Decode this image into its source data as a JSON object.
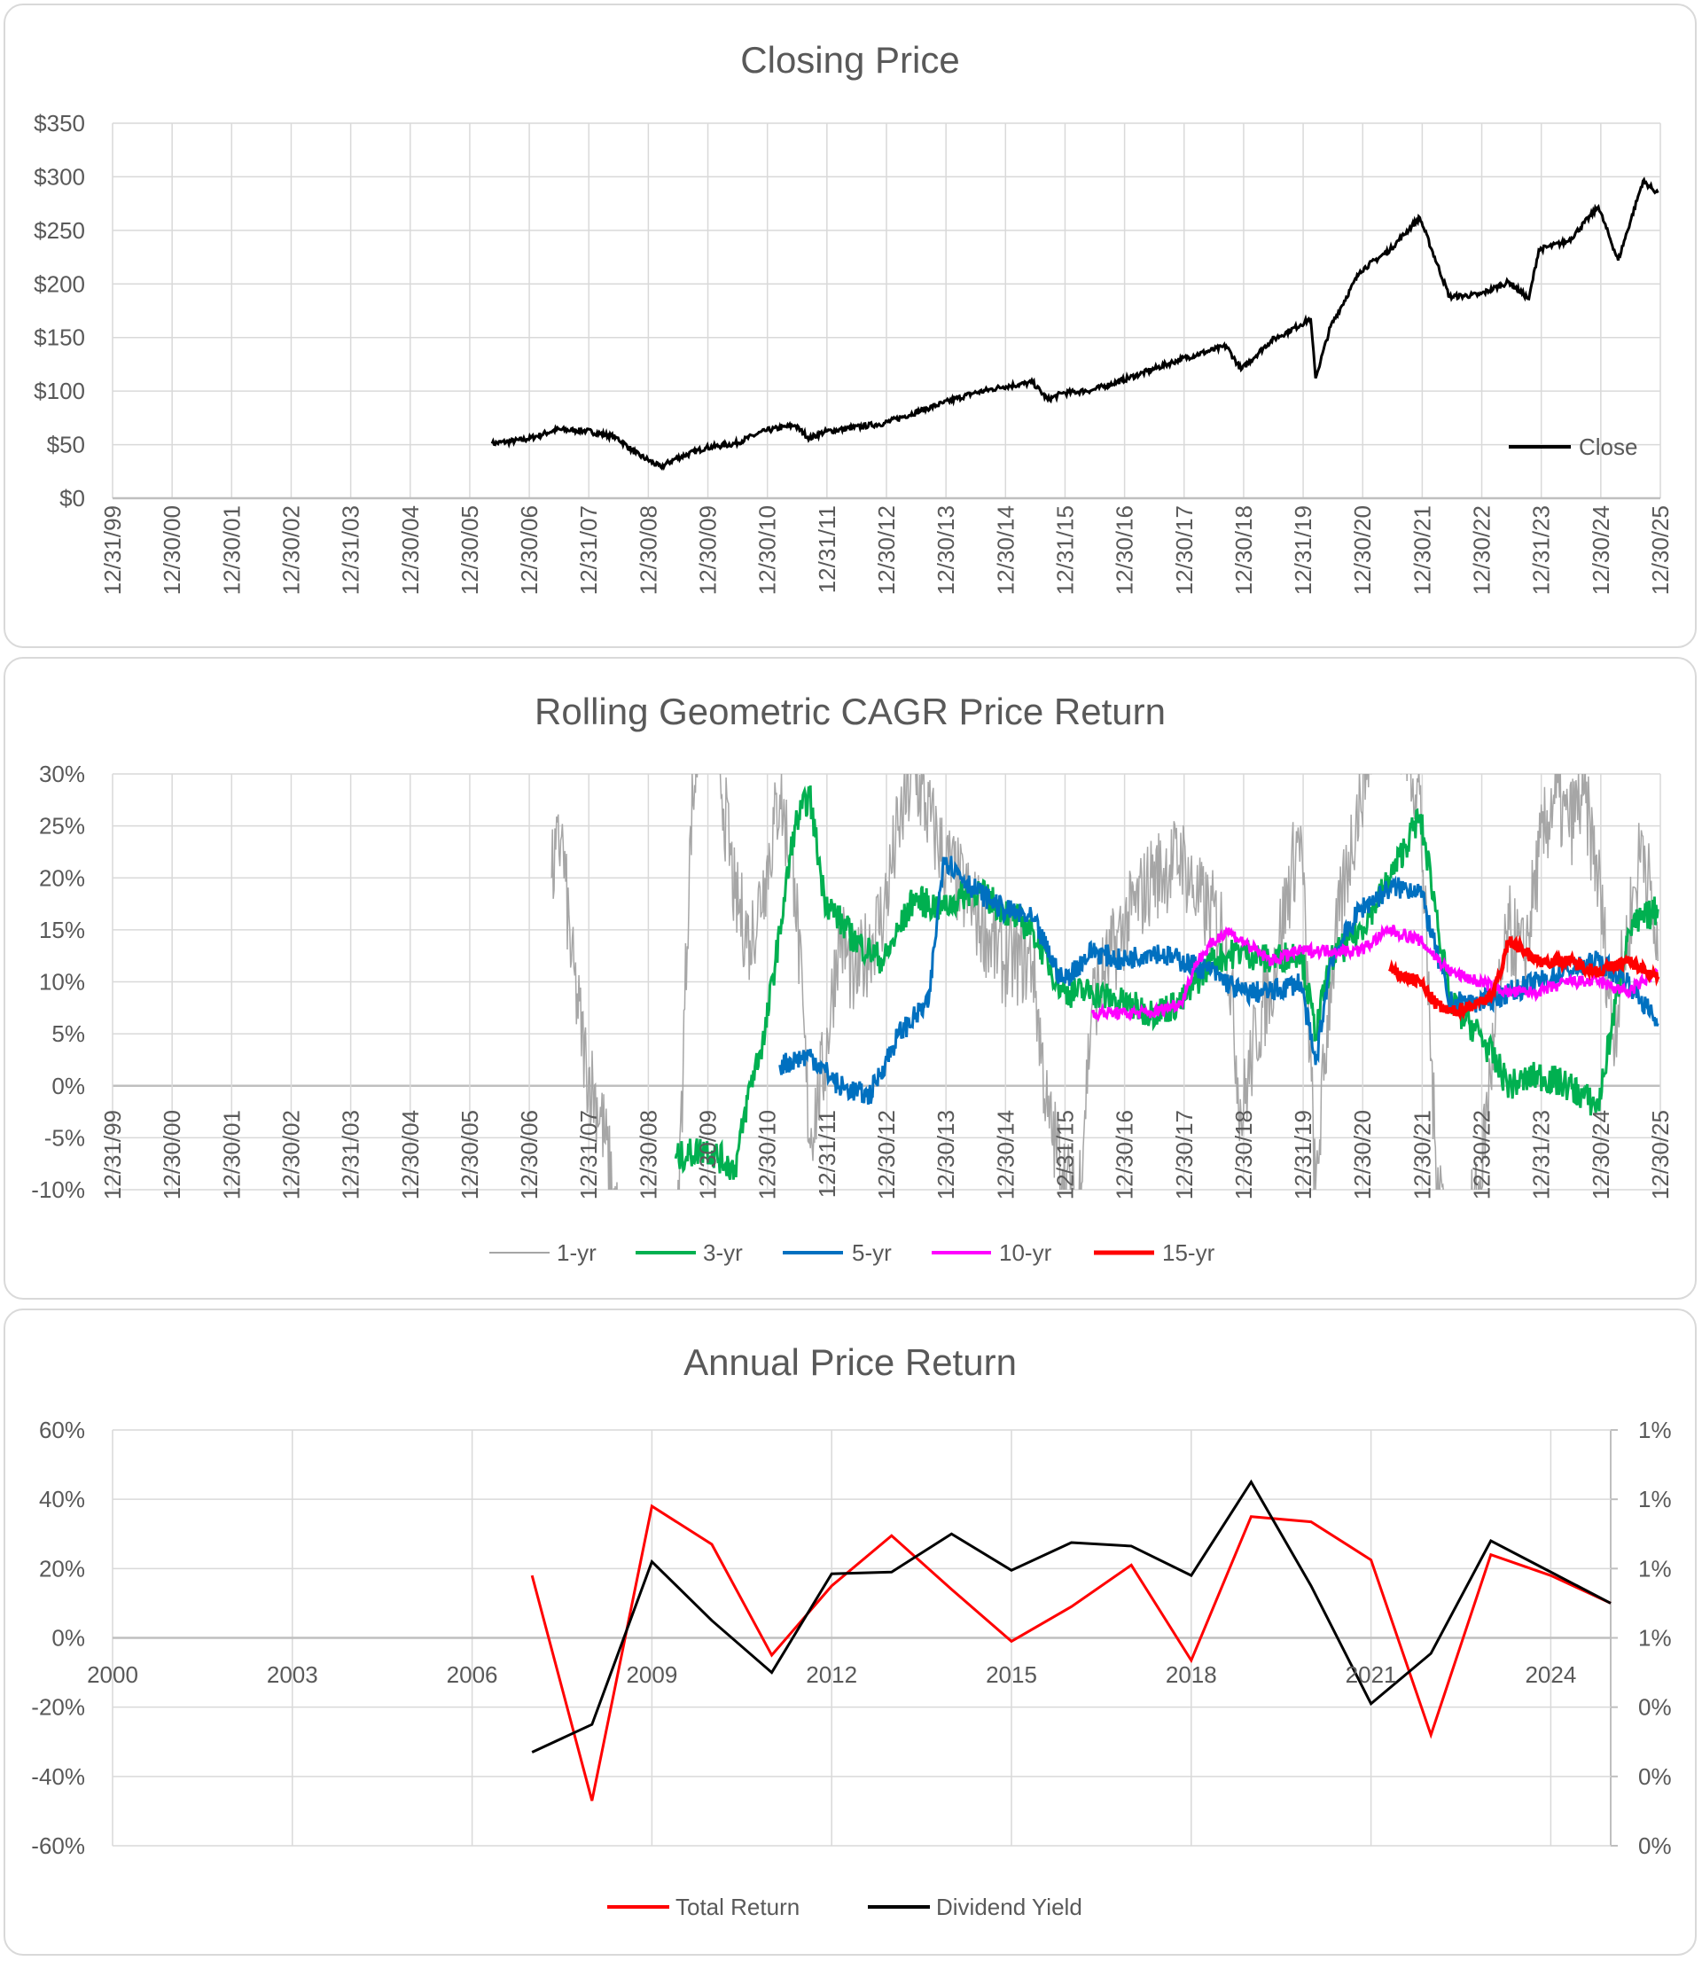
{
  "chart_data": [
    {
      "type": "line",
      "title": "Closing Price",
      "ylim": [
        0,
        350
      ],
      "ytick_labels": [
        "$0",
        "$50",
        "$100",
        "$150",
        "$200",
        "$250",
        "$300",
        "$350"
      ],
      "xtick_labels": [
        "12/31/99",
        "12/30/00",
        "12/30/01",
        "12/30/02",
        "12/31/03",
        "12/30/04",
        "12/30/05",
        "12/30/06",
        "12/31/07",
        "12/30/08",
        "12/30/09",
        "12/30/10",
        "12/31/11",
        "12/30/12",
        "12/30/13",
        "12/30/14",
        "12/31/15",
        "12/30/16",
        "12/30/17",
        "12/30/18",
        "12/31/19",
        "12/30/20",
        "12/30/21",
        "12/30/22",
        "12/31/23",
        "12/30/24",
        "12/30/25"
      ],
      "grid": true,
      "legend_position": "bottom-right",
      "series": [
        {
          "name": "Close",
          "color": "#000000",
          "x": [
            "2006-05",
            "2006-12",
            "2007-06",
            "2007-12",
            "2008-06",
            "2008-10",
            "2009-03",
            "2009-06",
            "2009-12",
            "2010-06",
            "2010-12",
            "2011-06",
            "2011-09",
            "2011-12",
            "2012-12",
            "2013-12",
            "2014-06",
            "2014-12",
            "2015-06",
            "2015-09",
            "2015-12",
            "2016-06",
            "2016-12",
            "2017-12",
            "2018-09",
            "2018-12",
            "2019-06",
            "2019-12",
            "2020-02",
            "2020-03",
            "2020-06",
            "2020-12",
            "2021-06",
            "2021-12",
            "2022-06",
            "2022-12",
            "2023-06",
            "2023-10",
            "2023-12",
            "2024-06",
            "2024-12",
            "2025-04",
            "2025-09",
            "2025-12"
          ],
          "y": [
            51,
            55,
            64,
            63,
            57,
            42,
            29,
            37,
            47,
            51,
            63,
            68,
            56,
            62,
            70,
            89,
            98,
            104,
            108,
            92,
            98,
            101,
            110,
            130,
            142,
            120,
            147,
            162,
            168,
            112,
            160,
            212,
            232,
            262,
            188,
            190,
            202,
            186,
            232,
            240,
            272,
            222,
            296,
            285
          ]
        }
      ]
    },
    {
      "type": "line",
      "title": "Rolling Geometric CAGR Price Return",
      "ylim": [
        -10,
        30
      ],
      "ytick_labels": [
        "-10%",
        "-5%",
        "0%",
        "5%",
        "10%",
        "15%",
        "20%",
        "25%",
        "30%"
      ],
      "xtick_labels": [
        "12/31/99",
        "12/30/00",
        "12/30/01",
        "12/30/02",
        "12/31/03",
        "12/30/04",
        "12/30/05",
        "12/30/06",
        "12/31/07",
        "12/30/08",
        "12/30/09",
        "12/30/10",
        "12/31/11",
        "12/30/12",
        "12/30/13",
        "12/30/14",
        "12/31/15",
        "12/30/16",
        "12/30/17",
        "12/30/18",
        "12/31/19",
        "12/30/20",
        "12/30/21",
        "12/30/22",
        "12/31/23",
        "12/30/24",
        "12/30/25"
      ],
      "grid": true,
      "legend_position": "bottom",
      "series": [
        {
          "name": "1-yr",
          "color": "#a6a6a6",
          "x": [
            "2007-05",
            "2007-07",
            "2007-09",
            "2007-12",
            "2008-03",
            "2008-06",
            "2008-12",
            "2009-06",
            "2009-09",
            "2009-12",
            "2010-03",
            "2010-06",
            "2010-09",
            "2010-12",
            "2011-03",
            "2011-06",
            "2011-09",
            "2011-12",
            "2012-03",
            "2012-06",
            "2012-12",
            "2013-03",
            "2013-06",
            "2013-12",
            "2014-06",
            "2014-12",
            "2015-06",
            "2015-09",
            "2015-12",
            "2016-03",
            "2016-06",
            "2016-12",
            "2017-06",
            "2017-12",
            "2018-03",
            "2018-09",
            "2018-12",
            "2019-03",
            "2019-06",
            "2019-12",
            "2020-03",
            "2020-06",
            "2020-09",
            "2020-12",
            "2021-03",
            "2021-06",
            "2021-12",
            "2022-03",
            "2022-06",
            "2022-09",
            "2022-12",
            "2023-03",
            "2023-06",
            "2023-09",
            "2023-12",
            "2024-03",
            "2024-06",
            "2024-09",
            "2024-12",
            "2025-03",
            "2025-06",
            "2025-09",
            "2025-12"
          ],
          "y": [
            20,
            24,
            12,
            2,
            -3,
            -12,
            -40,
            -20,
            25,
            40,
            30,
            18,
            14,
            20,
            28,
            20,
            -5,
            2,
            15,
            10,
            17,
            25,
            30,
            22,
            17,
            12,
            12,
            -3,
            -8,
            -12,
            8,
            15,
            20,
            22,
            18,
            15,
            -3,
            5,
            10,
            25,
            -10,
            10,
            20,
            28,
            35,
            38,
            28,
            -5,
            -15,
            -15,
            -10,
            5,
            15,
            12,
            22,
            28,
            25,
            28,
            20,
            5,
            15,
            24,
            12
          ]
        },
        {
          "name": "3-yr",
          "color": "#00b050",
          "x": [
            "2009-06",
            "2009-12",
            "2010-06",
            "2010-09",
            "2010-12",
            "2011-03",
            "2011-06",
            "2011-09",
            "2011-12",
            "2012-06",
            "2012-12",
            "2013-06",
            "2013-12",
            "2014-06",
            "2014-12",
            "2015-06",
            "2015-12",
            "2016-06",
            "2016-12",
            "2017-06",
            "2017-12",
            "2018-06",
            "2018-12",
            "2019-06",
            "2019-12",
            "2020-03",
            "2020-06",
            "2020-12",
            "2021-06",
            "2021-12",
            "2022-03",
            "2022-06",
            "2022-12",
            "2023-06",
            "2023-12",
            "2024-06",
            "2024-12",
            "2025-06",
            "2025-12"
          ],
          "y": [
            -7,
            -6,
            -8,
            0,
            5,
            15,
            25,
            28,
            18,
            14,
            12,
            18,
            17,
            19,
            17,
            15,
            9,
            9,
            8,
            7,
            8,
            12,
            13,
            12,
            13,
            5,
            12,
            15,
            20,
            26,
            18,
            8,
            5,
            0,
            1,
            0,
            -2,
            15,
            17
          ]
        },
        {
          "name": "5-yr",
          "color": "#0070c0",
          "x": [
            "2011-03",
            "2011-09",
            "2012-03",
            "2012-09",
            "2013-03",
            "2013-09",
            "2013-12",
            "2014-06",
            "2014-12",
            "2015-06",
            "2015-12",
            "2016-06",
            "2016-12",
            "2017-06",
            "2017-12",
            "2018-06",
            "2018-12",
            "2019-06",
            "2019-12",
            "2020-03",
            "2020-06",
            "2020-12",
            "2021-06",
            "2021-12",
            "2022-06",
            "2022-12",
            "2023-06",
            "2023-12",
            "2024-06",
            "2024-12",
            "2025-06",
            "2025-12"
          ],
          "y": [
            2,
            3,
            0,
            -1,
            5,
            8,
            22,
            19,
            17,
            16,
            10,
            13,
            12,
            13,
            12,
            11,
            9,
            9,
            10,
            2,
            12,
            17,
            19,
            19,
            8,
            8,
            9,
            10,
            11,
            12,
            10,
            6
          ]
        },
        {
          "name": "10-yr",
          "color": "#ff00ff",
          "x": [
            "2016-06",
            "2016-12",
            "2017-06",
            "2017-12",
            "2018-03",
            "2018-09",
            "2018-12",
            "2019-06",
            "2019-12",
            "2020-06",
            "2020-12",
            "2021-06",
            "2021-12",
            "2022-06",
            "2022-12",
            "2023-06",
            "2023-12",
            "2024-06",
            "2024-12",
            "2025-06",
            "2025-12"
          ],
          "y": [
            7,
            7,
            7,
            8,
            12,
            15,
            14,
            12,
            13,
            13,
            13,
            15,
            14,
            11,
            10,
            9,
            9,
            10,
            10,
            9,
            11
          ]
        },
        {
          "name": "15-yr",
          "color": "#ff0000",
          "x": [
            "2021-06",
            "2021-12",
            "2022-03",
            "2022-06",
            "2022-12",
            "2023-03",
            "2023-06",
            "2023-09",
            "2023-12",
            "2024-06",
            "2024-12",
            "2025-06",
            "2025-12"
          ],
          "y": [
            11,
            10,
            8,
            7,
            8,
            9,
            14,
            13,
            12,
            12,
            11,
            12,
            10.5
          ]
        }
      ]
    },
    {
      "type": "line",
      "title": "Annual Price Return",
      "ylim": [
        -60,
        60
      ],
      "y2lim": [
        0,
        1.2
      ],
      "ytick_labels": [
        "-60%",
        "-40%",
        "-20%",
        "0%",
        "20%",
        "40%",
        "60%"
      ],
      "y2tick_labels": [
        "0%",
        "0%",
        "0%",
        "1%",
        "1%",
        "1%",
        "1%"
      ],
      "xtick_labels": [
        "2000",
        "2003",
        "2006",
        "2009",
        "2012",
        "2015",
        "2018",
        "2021",
        "2024"
      ],
      "xlim": [
        2000,
        2025
      ],
      "grid": true,
      "legend_position": "bottom",
      "series": [
        {
          "name": "Total Return",
          "color": "#ff0000",
          "axis": "left",
          "x": [
            2007,
            2008,
            2009,
            2010,
            2011,
            2012,
            2013,
            2014,
            2015,
            2016,
            2017,
            2018,
            2019,
            2020,
            2021,
            2022,
            2023,
            2024,
            2025
          ],
          "y": [
            18,
            -47,
            38,
            27,
            -5,
            15,
            29.5,
            14,
            -1,
            9,
            21,
            -6.5,
            35,
            33.5,
            22.5,
            -28,
            24,
            18,
            10
          ]
        },
        {
          "name": "Dividend Yield",
          "color": "#000000",
          "axis": "right",
          "x": [
            2007,
            2008,
            2009,
            2010,
            2011,
            2012,
            2013,
            2014,
            2015,
            2016,
            2017,
            2018,
            2019,
            2020,
            2021,
            2022,
            2023,
            2024,
            2025
          ],
          "y": [
            0.27,
            0.35,
            0.82,
            0.65,
            0.5,
            0.785,
            0.79,
            0.9,
            0.795,
            0.875,
            0.865,
            0.78,
            1.05,
            0.75,
            0.41,
            0.555,
            0.88,
            0.79,
            0.7
          ]
        }
      ]
    }
  ]
}
